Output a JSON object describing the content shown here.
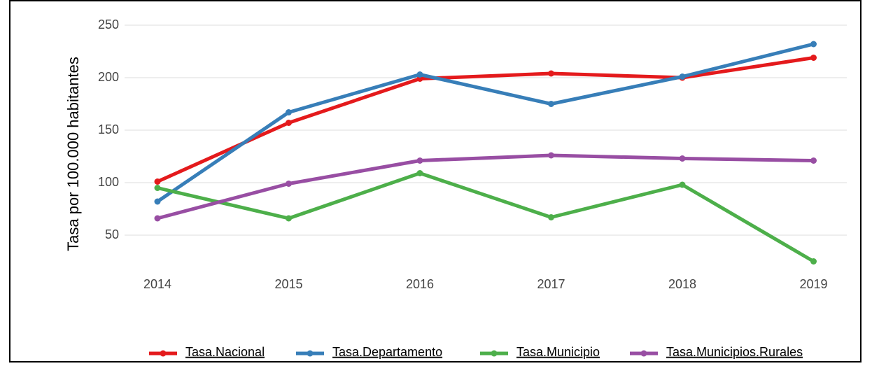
{
  "chart_data": {
    "type": "line",
    "y_label": "Tasa por 100.000 habitantes",
    "categories": [
      "2014",
      "2015",
      "2016",
      "2017",
      "2018",
      "2019"
    ],
    "series": [
      {
        "name": "Tasa.Nacional",
        "color": "#e41a1c",
        "values": [
          101,
          157,
          199,
          204,
          200,
          219
        ]
      },
      {
        "name": "Tasa.Departamento",
        "color": "#377eb8",
        "values": [
          82,
          167,
          203,
          175,
          201,
          232
        ]
      },
      {
        "name": "Tasa.Municipio",
        "color": "#4daf4a",
        "values": [
          95,
          66,
          109,
          67,
          98,
          25
        ]
      },
      {
        "name": "Tasa.Municipios.Rurales",
        "color": "#984ea3",
        "values": [
          66,
          99,
          121,
          126,
          123,
          121
        ]
      }
    ],
    "ylim": [
      20,
      250
    ],
    "yticks": [
      50,
      100,
      150,
      200,
      250
    ],
    "grid": true,
    "legend": "bottom"
  }
}
